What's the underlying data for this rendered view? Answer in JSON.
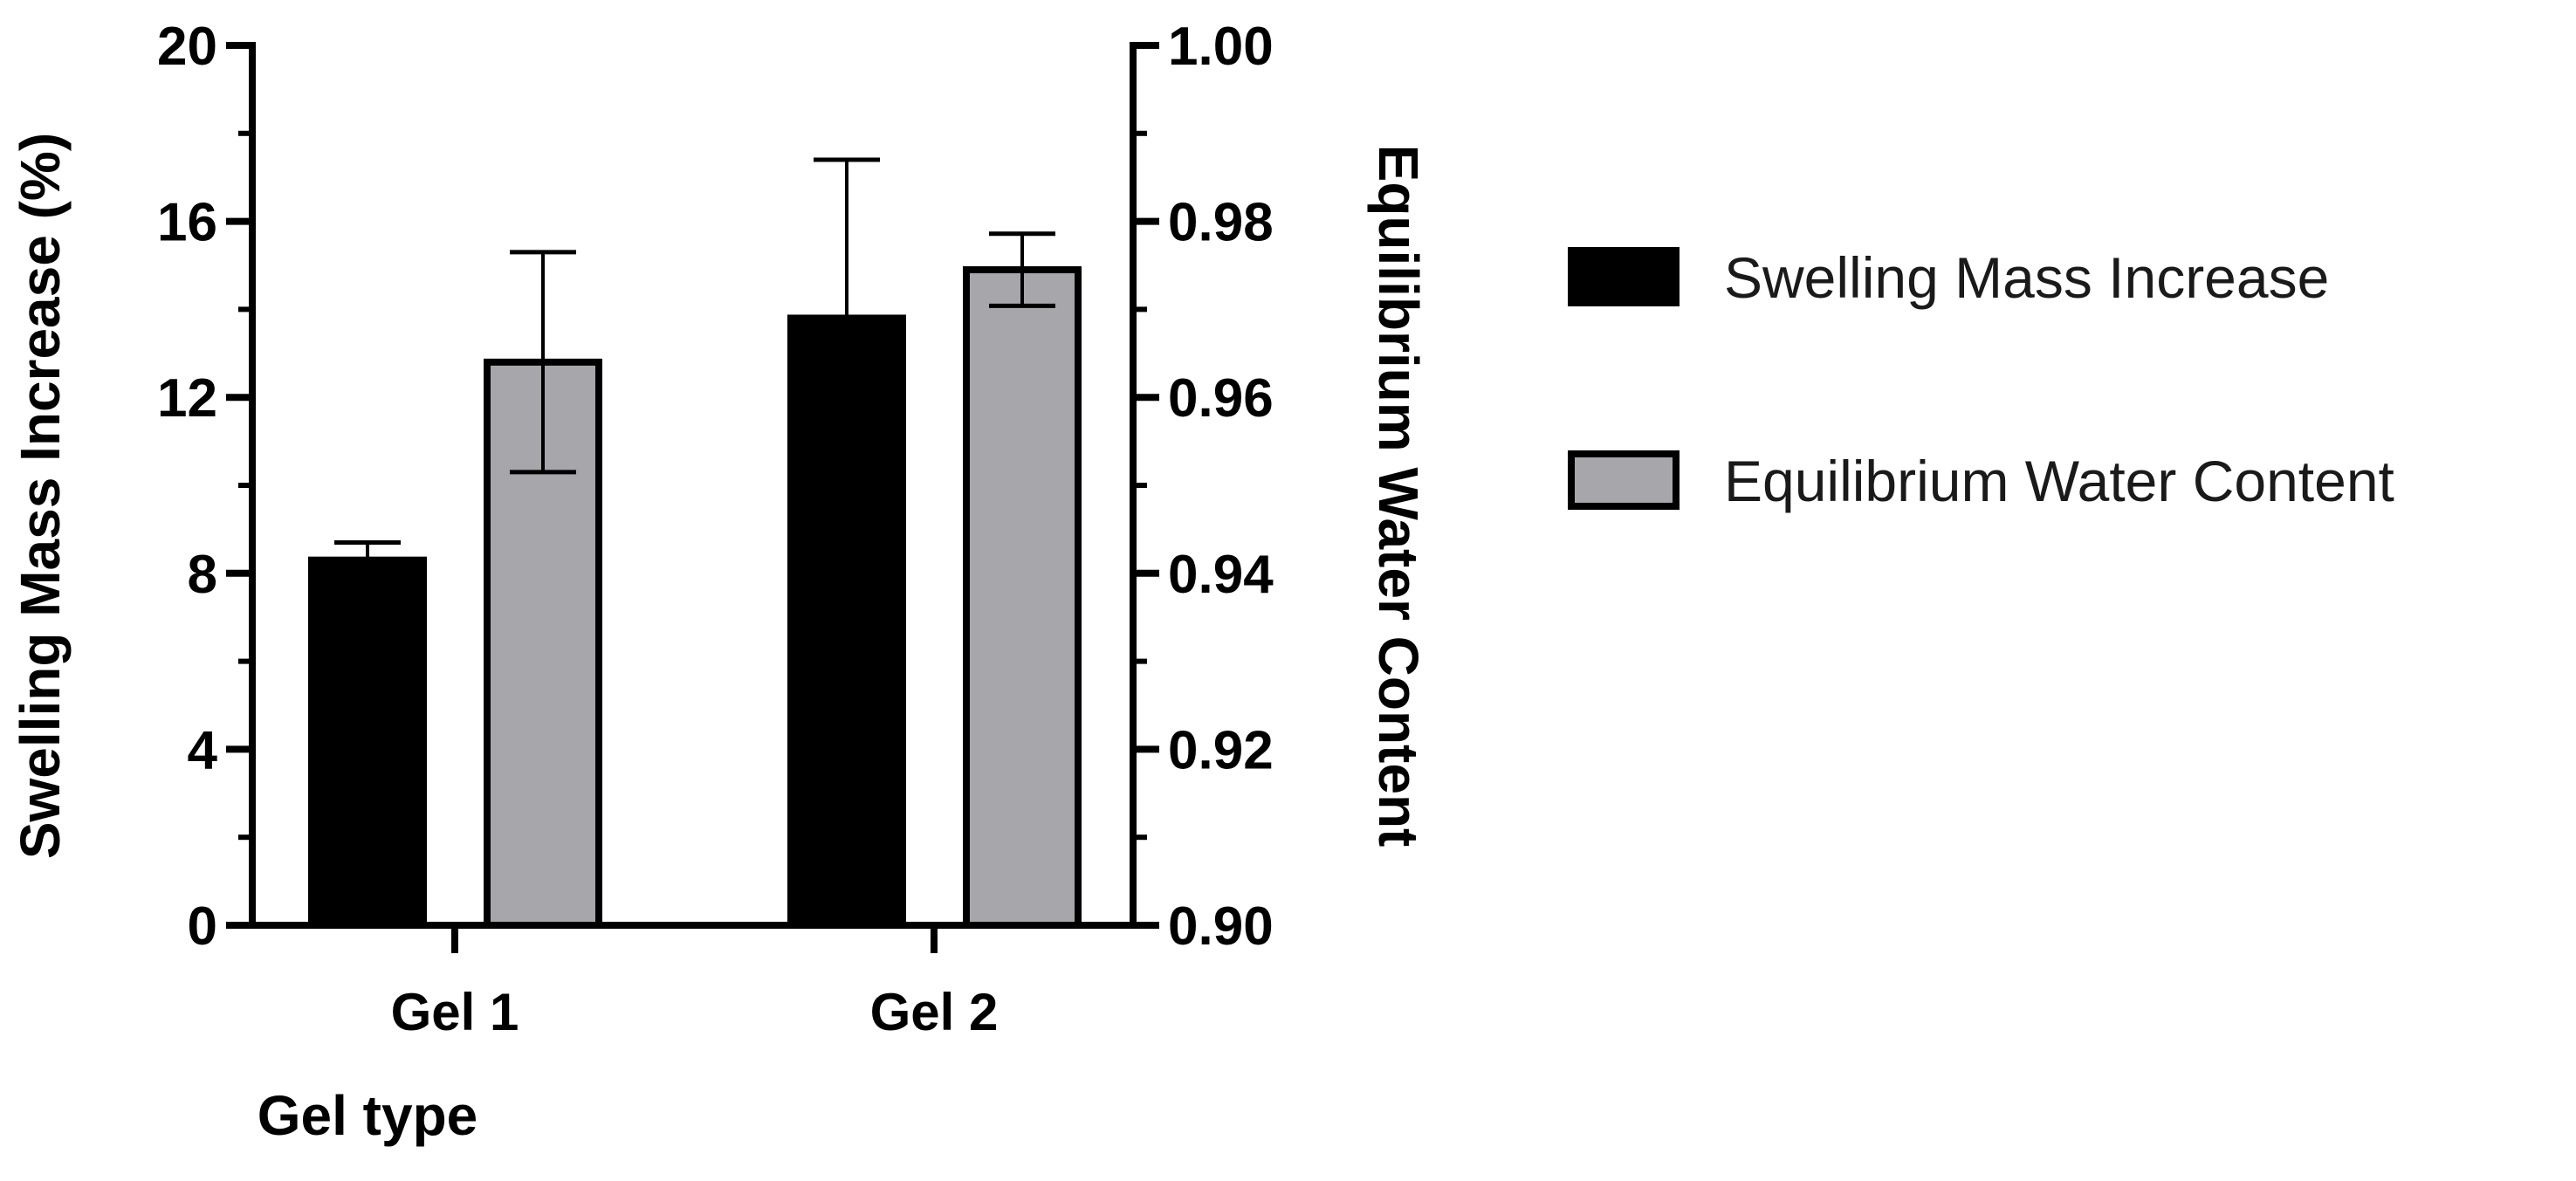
{
  "chart_data": {
    "type": "bar",
    "xlabel": "Gel type",
    "categories": [
      "Gel 1",
      "Gel 2"
    ],
    "y_left": {
      "label": "Swelling Mass Increase (%)",
      "ylim": [
        0,
        20
      ],
      "ticks": [
        "0",
        "4",
        "8",
        "12",
        "16",
        "20"
      ]
    },
    "y_right": {
      "label": "Equilibrium Water Content",
      "ylim": [
        0.9,
        1.0
      ],
      "ticks": [
        "0.90",
        "0.92",
        "0.94",
        "0.96",
        "0.98",
        "1.00"
      ]
    },
    "series": [
      {
        "name": "Swelling Mass Increase",
        "axis": "left",
        "color": "#000000",
        "values": [
          8.3,
          13.8
        ],
        "error_upper": [
          0.4,
          3.6
        ]
      },
      {
        "name": "Equilibrium Water Content",
        "axis": "right",
        "color": "#a7a6ab",
        "values": [
          0.964,
          0.9745
        ],
        "error_upper": [
          0.0125,
          0.0041
        ],
        "error_lower": [
          0.0125,
          0.0041
        ]
      }
    ],
    "legend_position": "right"
  }
}
